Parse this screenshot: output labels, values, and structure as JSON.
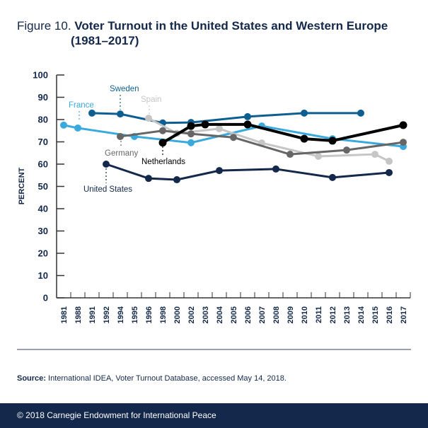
{
  "figure": {
    "label": "Figure 10.",
    "title_line1": "Voter Turnout in the United States and Western Europe",
    "title_line2": "(1981–2017)"
  },
  "source": {
    "label": "Source:",
    "text": "International IDEA, Voter Turnout Database, accessed May 14, 2018."
  },
  "footer": {
    "copyright": "© 2018 Carnegie Endowment for International Peace"
  },
  "chart_data": {
    "type": "line",
    "title": "Voter Turnout in the United States and Western Europe (1981–2017)",
    "xlabel": "",
    "ylabel": "PERCENT",
    "ylim": [
      0,
      100
    ],
    "yticks": [
      0,
      10,
      20,
      30,
      40,
      50,
      60,
      70,
      80,
      90,
      100
    ],
    "grid": false,
    "legend": "inline labels",
    "categories": [
      "1981",
      "1988",
      "1991",
      "1992",
      "1994",
      "1995",
      "1996",
      "1998",
      "2000",
      "2002",
      "2003",
      "2004",
      "2005",
      "2006",
      "2007",
      "2008",
      "2009",
      "2010",
      "2011",
      "2012",
      "2013",
      "2014",
      "2015",
      "2016",
      "2017"
    ],
    "series": [
      {
        "name": "France",
        "color": "#3aa9dc",
        "points": [
          [
            "1981",
            77.5
          ],
          [
            "1988",
            76.2
          ],
          [
            "1995",
            72.4
          ],
          [
            "2002",
            69.6
          ],
          [
            "2007",
            77.1
          ],
          [
            "2012",
            71.4
          ],
          [
            "2017",
            67.9
          ]
        ]
      },
      {
        "name": "Sweden",
        "color": "#0d5f92",
        "points": [
          [
            "1991",
            82.9
          ],
          [
            "1994",
            82.5
          ],
          [
            "1998",
            78.5
          ],
          [
            "2002",
            78.7
          ],
          [
            "2006",
            81.3
          ],
          [
            "2010",
            82.9
          ],
          [
            "2014",
            82.9
          ]
        ]
      },
      {
        "name": "Spain",
        "color": "#c6c6c6",
        "points": [
          [
            "1996",
            80.6
          ],
          [
            "2000",
            73.8
          ],
          [
            "2004",
            75.9
          ],
          [
            "2007",
            69.5
          ],
          [
            "2011",
            63.5
          ],
          [
            "2015",
            64.4
          ],
          [
            "2016",
            61.3
          ]
        ]
      },
      {
        "name": "Germany",
        "color": "#666666",
        "points": [
          [
            "1994",
            72.4
          ],
          [
            "1998",
            75.0
          ],
          [
            "2002",
            73.6
          ],
          [
            "2005",
            72.0
          ],
          [
            "2009",
            64.4
          ],
          [
            "2013",
            66.3
          ],
          [
            "2017",
            69.8
          ]
        ]
      },
      {
        "name": "Netherlands",
        "color": "#000000",
        "points": [
          [
            "1998",
            69.6
          ],
          [
            "2002",
            77.1
          ],
          [
            "2003",
            77.8
          ],
          [
            "2006",
            77.8
          ],
          [
            "2010",
            71.4
          ],
          [
            "2012",
            70.5
          ],
          [
            "2017",
            77.5
          ]
        ]
      },
      {
        "name": "United States",
        "color": "#13284a",
        "points": [
          [
            "1992",
            60.0
          ],
          [
            "1996",
            53.6
          ],
          [
            "2000",
            53.0
          ],
          [
            "2004",
            57.1
          ],
          [
            "2008",
            57.8
          ],
          [
            "2012",
            54.0
          ],
          [
            "2016",
            56.2
          ]
        ]
      }
    ]
  }
}
